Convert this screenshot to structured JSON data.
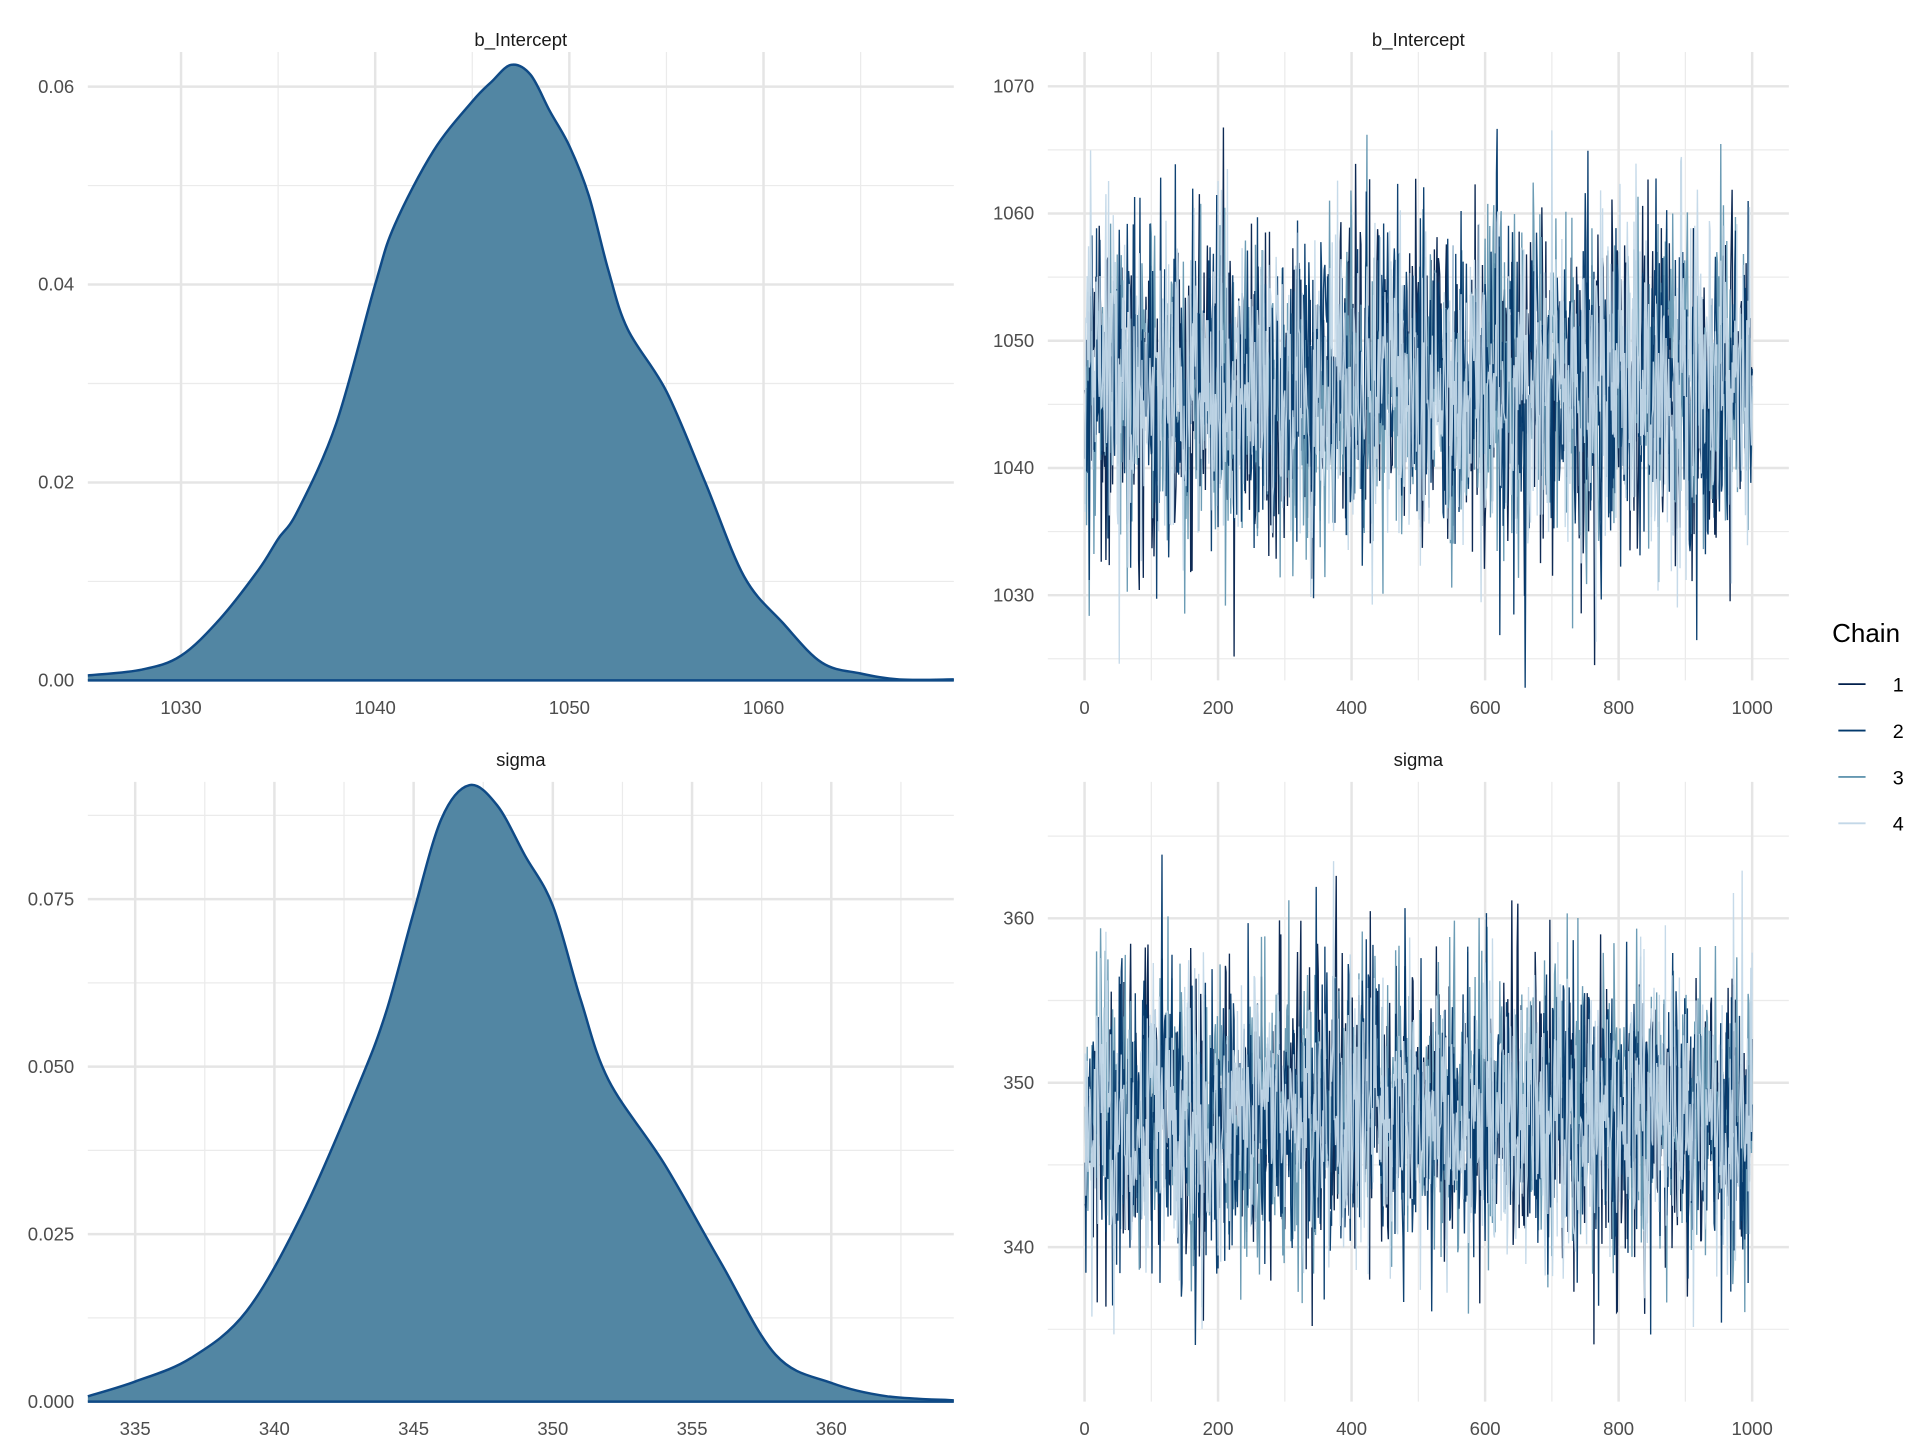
{
  "chart_data": [
    {
      "type": "area",
      "title": "b_Intercept",
      "xlim": [
        1025.2,
        1069.8
      ],
      "ylim": [
        0,
        0.0635
      ],
      "xticks": [
        1030,
        1040,
        1050,
        1060
      ],
      "yticks": [
        0,
        0.02,
        0.04,
        0.06
      ],
      "ytick_labels": [
        "0.00",
        "0.02",
        "0.04",
        "0.06"
      ],
      "x": [
        1025.2,
        1028,
        1030,
        1032,
        1034,
        1035,
        1036,
        1038,
        1040,
        1041,
        1043,
        1045,
        1046,
        1047,
        1048,
        1049,
        1050,
        1051,
        1052,
        1053,
        1055,
        1057,
        1059,
        1061,
        1063,
        1065,
        1067,
        1069.8
      ],
      "y": [
        0.0005,
        0.0011,
        0.0025,
        0.0062,
        0.0112,
        0.0143,
        0.0171,
        0.026,
        0.04,
        0.046,
        0.0535,
        0.0585,
        0.0605,
        0.0622,
        0.0612,
        0.0575,
        0.054,
        0.049,
        0.0415,
        0.0355,
        0.0292,
        0.02,
        0.0105,
        0.0058,
        0.0018,
        0.0007,
        0.0001,
        0.0001
      ],
      "fill": "#5286a3",
      "line": "#0f4a86"
    },
    {
      "type": "line",
      "title": "b_Intercept",
      "xlim": [
        -55,
        1055
      ],
      "ylim": [
        1023.3,
        1072.7
      ],
      "xticks": [
        0,
        200,
        400,
        600,
        800,
        1000
      ],
      "yticks": [
        1030,
        1040,
        1050,
        1060,
        1070
      ],
      "iterations": 1000,
      "mean": 1046.5,
      "sd": 6.4,
      "seed": 11
    },
    {
      "type": "area",
      "title": "sigma",
      "xlim": [
        333.3,
        364.4
      ],
      "ylim": [
        0,
        0.0925
      ],
      "xticks": [
        335,
        340,
        345,
        350,
        355,
        360
      ],
      "yticks": [
        0,
        0.025,
        0.05,
        0.075
      ],
      "ytick_labels": [
        "0.000",
        "0.025",
        "0.050",
        "0.075"
      ],
      "x": [
        333.3,
        335,
        337,
        339,
        341,
        343,
        344,
        345,
        346,
        347,
        348,
        349,
        350,
        351,
        352,
        354,
        356,
        358,
        360,
        362,
        364.4
      ],
      "y": [
        0.0008,
        0.003,
        0.0065,
        0.0135,
        0.028,
        0.047,
        0.058,
        0.073,
        0.087,
        0.092,
        0.089,
        0.0815,
        0.074,
        0.06,
        0.048,
        0.0355,
        0.021,
        0.007,
        0.0028,
        0.0008,
        0.0002
      ],
      "fill": "#5286a3",
      "line": "#0f4a86"
    },
    {
      "type": "line",
      "title": "sigma",
      "xlim": [
        -55,
        1055
      ],
      "ylim": [
        330.6,
        368.3
      ],
      "xticks": [
        0,
        200,
        400,
        600,
        800,
        1000
      ],
      "yticks": [
        340,
        350,
        360
      ],
      "iterations": 1000,
      "mean": 348,
      "sd": 4.3,
      "seed": 29
    }
  ],
  "legend": {
    "title": "Chain",
    "placement": "right",
    "items": [
      {
        "label": "1",
        "color": "#011f4b"
      },
      {
        "label": "2",
        "color": "#03396c"
      },
      {
        "label": "3",
        "color": "#6497b1"
      },
      {
        "label": "4",
        "color": "#c3d8e8"
      }
    ]
  }
}
